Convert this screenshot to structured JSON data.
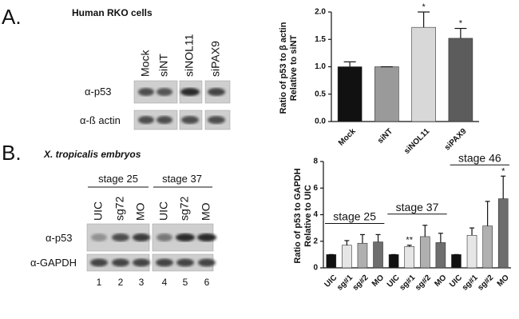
{
  "panel_a": {
    "label": "A.",
    "title": "Human RKO cells",
    "lanes": [
      "Mock",
      "siNT",
      "siNOL11",
      "siPAX9"
    ],
    "rows": [
      "α-p53",
      "α-ß actin"
    ]
  },
  "panel_b": {
    "label": "B.",
    "title": "X. tropicalis embryos",
    "stages": [
      "stage 25",
      "stage 37"
    ],
    "lanes": [
      "UIC",
      "sg72",
      "MO",
      "UIC",
      "sg72",
      "MO"
    ],
    "rows": [
      "α-p53",
      "α-GAPDH"
    ],
    "lane_numbers": [
      "1",
      "2",
      "3",
      "4",
      "5",
      "6"
    ]
  },
  "chart_data": [
    {
      "type": "bar",
      "ylabel": [
        "Ratio of p53 to β actin",
        "Relative to siNT"
      ],
      "categories": [
        "Mock",
        "siNT",
        "siNOL11",
        "siPAX9"
      ],
      "values": [
        1.0,
        1.0,
        1.72,
        1.52
      ],
      "errors": [
        0.09,
        0,
        0.28,
        0.18
      ],
      "colors": [
        "#111111",
        "#9a9a9a",
        "#d8d8d8",
        "#5c5c5c"
      ],
      "significance": [
        null,
        null,
        "*",
        "*"
      ],
      "ylim": [
        0,
        2
      ],
      "yticks": [
        {
          "value": 0,
          "label": "0.0"
        },
        {
          "value": 0.5,
          "label": "0.5"
        },
        {
          "value": 1,
          "label": "1.0"
        },
        {
          "value": 1.5,
          "label": "1.5"
        },
        {
          "value": 2,
          "label": "2.0"
        }
      ]
    },
    {
      "type": "bar",
      "ylabel": [
        "Ratio of p53 to GAPDH",
        "Relative to UIC"
      ],
      "categories": [
        "UIC",
        "sg#1",
        "sg#2",
        "MO",
        "UIC",
        "sg#1",
        "sg#2",
        "MO",
        "UIC",
        "sg#1",
        "sg#2",
        "MO"
      ],
      "values": [
        1,
        1.7,
        1.85,
        1.95,
        1,
        1.6,
        2.35,
        1.9,
        1,
        2.45,
        3.15,
        5.2
      ],
      "errors": [
        0,
        0.35,
        0.65,
        0.55,
        0,
        0.1,
        0.85,
        0.7,
        0,
        0.55,
        1.85,
        1.7
      ],
      "colors": [
        "#111111",
        "#e6e6e6",
        "#b0b0b0",
        "#6e6e6e",
        "#111111",
        "#e6e6e6",
        "#b0b0b0",
        "#6e6e6e",
        "#111111",
        "#e6e6e6",
        "#b0b0b0",
        "#6e6e6e"
      ],
      "significance": [
        null,
        null,
        null,
        null,
        null,
        "**",
        null,
        null,
        null,
        null,
        null,
        "*"
      ],
      "groups": [
        "stage 25",
        "stage 37",
        "stage 46"
      ],
      "ylim": [
        0,
        8
      ],
      "yticks": [
        0,
        2,
        4,
        6,
        8
      ]
    }
  ]
}
